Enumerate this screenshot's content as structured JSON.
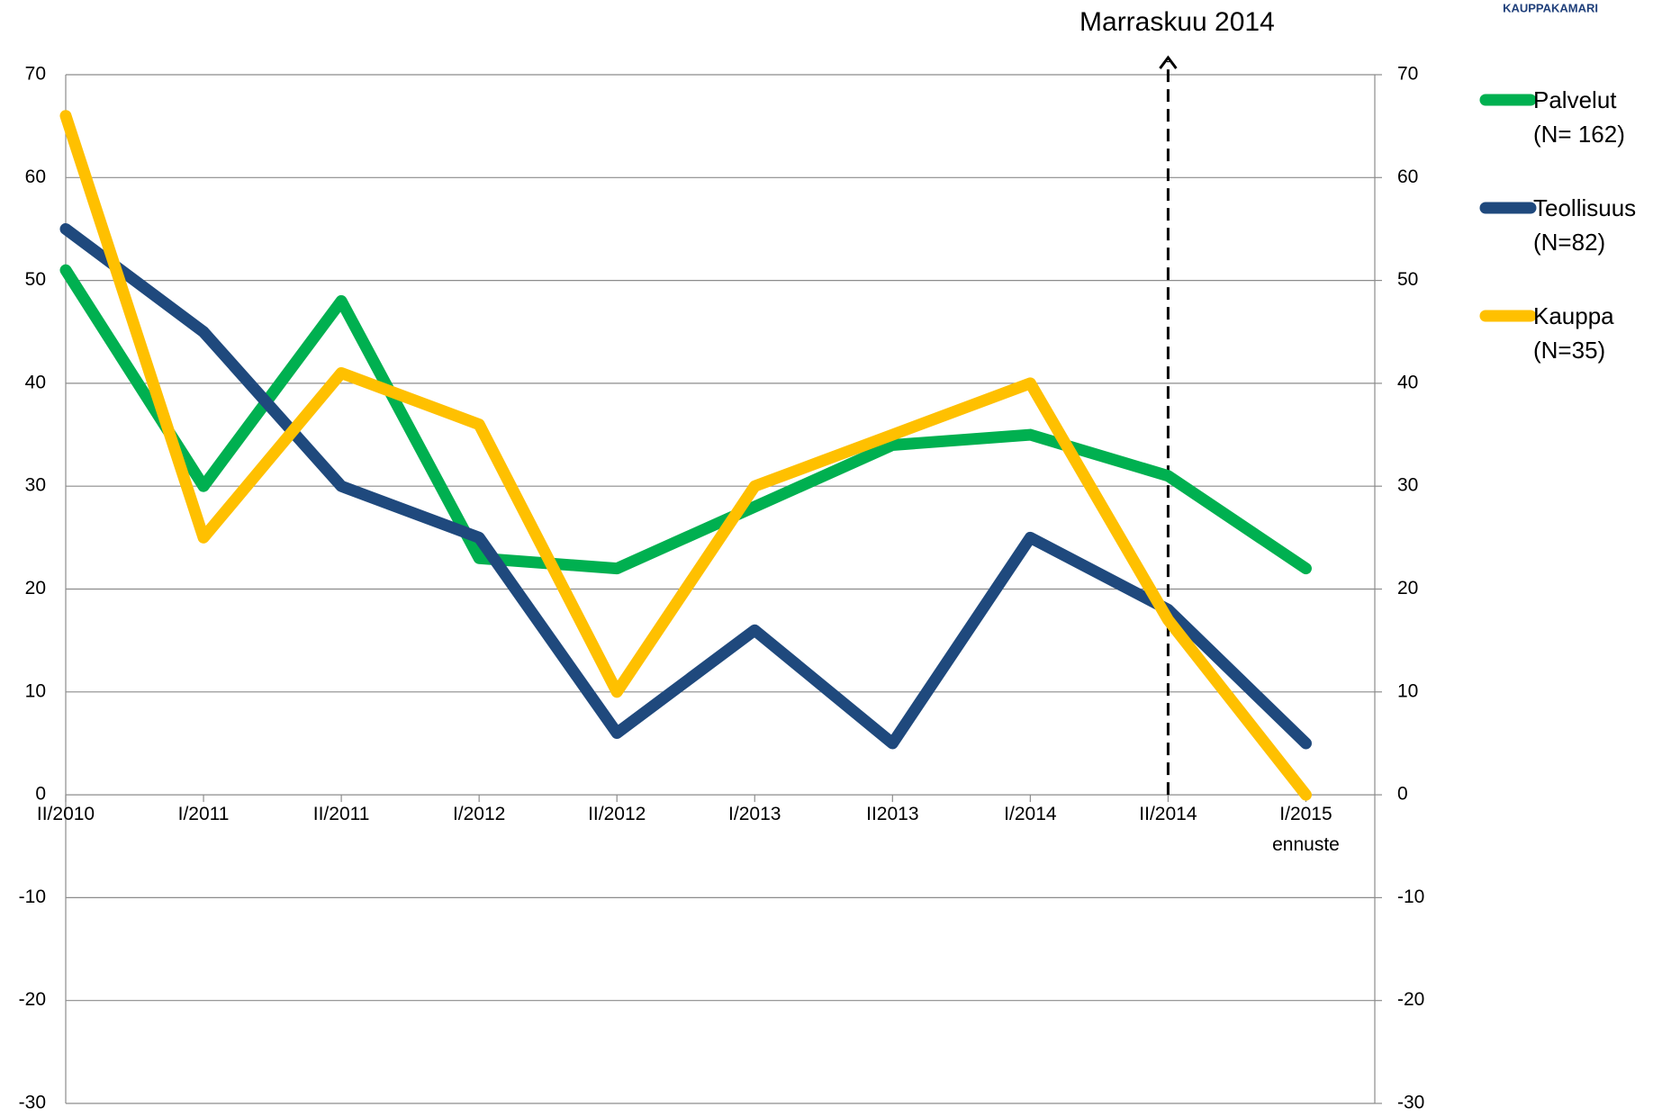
{
  "logo": "KAUPPAKAMARI",
  "chart_data": {
    "type": "line",
    "annotation": "Marraskuu 2014",
    "categories": [
      "II/2010",
      "I/2011",
      "II/2011",
      "I/2012",
      "II/2012",
      "I/2013",
      "II2013",
      "I/2014",
      "II/2014",
      "I/2015\nennuste"
    ],
    "series": [
      {
        "name": "Palvelut\n(N= 162)",
        "color": "#00b050",
        "values": [
          51,
          30,
          48,
          23,
          22,
          28,
          34,
          35,
          31,
          22
        ]
      },
      {
        "name": "Teollisuus\n(N=82)",
        "color": "#1f497d",
        "values": [
          55,
          45,
          30,
          25,
          6,
          16,
          5,
          25,
          18,
          5
        ]
      },
      {
        "name": "Kauppa\n(N=35)",
        "color": "#ffc000",
        "values": [
          66,
          25,
          41,
          36,
          10,
          30,
          35,
          40,
          17,
          0
        ]
      }
    ],
    "ylim": [
      -30,
      70
    ],
    "yticks": [
      -30,
      -20,
      -10,
      0,
      10,
      20,
      30,
      40,
      50,
      60,
      70
    ],
    "y2lim": [
      -30,
      70
    ],
    "y2ticks": [
      -30,
      -20,
      -10,
      0,
      10,
      20,
      30,
      40,
      50,
      60,
      70
    ],
    "grid": true,
    "legend": "right"
  }
}
